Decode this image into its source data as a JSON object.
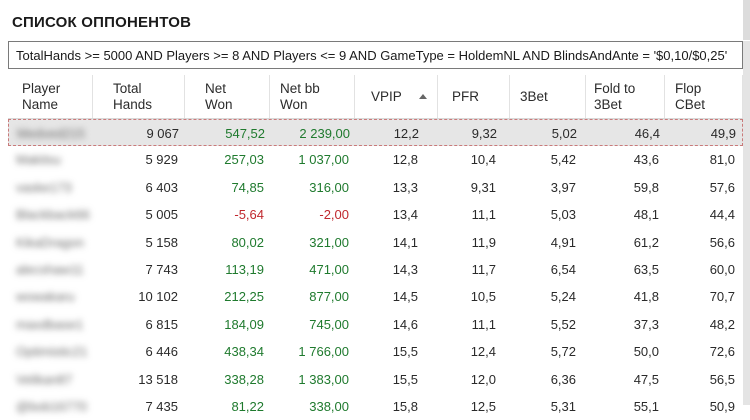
{
  "title": "СПИСОК ОППОНЕНТОВ",
  "filter": "TotalHands >= 5000 AND Players >= 8 AND Players <= 9 AND GameType = HoldemNL AND BlindsAndAnte = '$0,10/$0,25'",
  "columns": [
    "Player\nName",
    "Total\nHands",
    "Net\nWon",
    "Net bb\nWon",
    "VPIP",
    "PFR",
    "3Bet",
    "Fold to\n3Bet",
    "Flop\nCBet"
  ],
  "sort": {
    "column": "VPIP",
    "direction": "ascending",
    "icon": "sort-ascending-icon"
  },
  "colors": {
    "positive": "#1f7a2e",
    "negative": "#c0282e",
    "selected_row": "#e6e6e6"
  },
  "rows": [
    {
      "name": "Medved215",
      "hands": "9 067",
      "net": "547,52",
      "netbb": "2 239,00",
      "vpip": "12,2",
      "pfr": "9,32",
      "threebet": "5,02",
      "fold3bet": "46,4",
      "cbet": "49,9",
      "sign": "pos",
      "selected": true
    },
    {
      "name": "Makitsu",
      "hands": "5 929",
      "net": "257,03",
      "netbb": "1 037,00",
      "vpip": "12,8",
      "pfr": "10,4",
      "threebet": "5,42",
      "fold3bet": "43,6",
      "cbet": "81,0",
      "sign": "pos"
    },
    {
      "name": "vaske173",
      "hands": "6 403",
      "net": "74,85",
      "netbb": "316,00",
      "vpip": "13,3",
      "pfr": "9,31",
      "threebet": "3,97",
      "fold3bet": "59,8",
      "cbet": "57,6",
      "sign": "pos"
    },
    {
      "name": "Blackback66",
      "hands": "5 005",
      "net": "-5,64",
      "netbb": "-2,00",
      "vpip": "13,4",
      "pfr": "11,1",
      "threebet": "5,03",
      "fold3bet": "48,1",
      "cbet": "44,4",
      "sign": "neg"
    },
    {
      "name": "KikaDragon",
      "hands": "5 158",
      "net": "80,02",
      "netbb": "321,00",
      "vpip": "14,1",
      "pfr": "11,9",
      "threebet": "4,91",
      "fold3bet": "61,2",
      "cbet": "56,6",
      "sign": "pos"
    },
    {
      "name": "alecshaw11",
      "hands": "7 743",
      "net": "113,19",
      "netbb": "471,00",
      "vpip": "14,3",
      "pfr": "11,7",
      "threebet": "6,54",
      "fold3bet": "63,5",
      "cbet": "60,0",
      "sign": "pos"
    },
    {
      "name": "wowakaru",
      "hands": "10 102",
      "net": "212,25",
      "netbb": "877,00",
      "vpip": "14,5",
      "pfr": "10,5",
      "threebet": "5,24",
      "fold3bet": "41,8",
      "cbet": "70,7",
      "sign": "pos"
    },
    {
      "name": "maxdbase1",
      "hands": "6 815",
      "net": "184,09",
      "netbb": "745,00",
      "vpip": "14,6",
      "pfr": "11,1",
      "threebet": "5,52",
      "fold3bet": "37,3",
      "cbet": "48,2",
      "sign": "pos"
    },
    {
      "name": "Optimistic21",
      "hands": "6 446",
      "net": "438,34",
      "netbb": "1 766,00",
      "vpip": "15,5",
      "pfr": "12,4",
      "threebet": "5,72",
      "fold3bet": "50,0",
      "cbet": "72,6",
      "sign": "pos"
    },
    {
      "name": "Velikan87",
      "hands": "13 518",
      "net": "338,28",
      "netbb": "1 383,00",
      "vpip": "15,5",
      "pfr": "12,0",
      "threebet": "6,36",
      "fold3bet": "47,5",
      "cbet": "56,5",
      "sign": "pos"
    },
    {
      "name": "@bob16770",
      "hands": "7 435",
      "net": "81,22",
      "netbb": "338,00",
      "vpip": "15,8",
      "pfr": "12,5",
      "threebet": "5,31",
      "fold3bet": "55,1",
      "cbet": "50,9",
      "sign": "pos"
    }
  ]
}
